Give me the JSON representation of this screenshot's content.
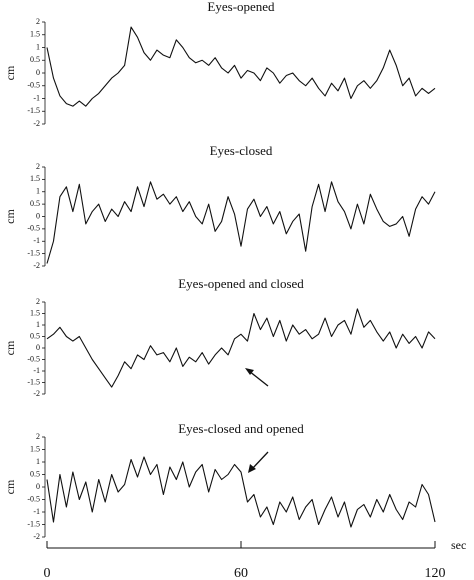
{
  "chart_data": [
    {
      "type": "line",
      "title": "Eyes-opened",
      "ylabel": "cm",
      "xlim": [
        0,
        120
      ],
      "ylim": [
        -2,
        2
      ],
      "yticks": [
        2,
        1.5,
        1,
        0.5,
        0,
        -0.5,
        -1,
        -1.5,
        -2
      ],
      "x": [
        0,
        2,
        4,
        6,
        8,
        10,
        12,
        14,
        16,
        18,
        20,
        22,
        24,
        26,
        28,
        30,
        32,
        34,
        36,
        38,
        40,
        42,
        44,
        46,
        48,
        50,
        52,
        54,
        56,
        58,
        60,
        62,
        64,
        66,
        68,
        70,
        72,
        74,
        76,
        78,
        80,
        82,
        84,
        86,
        88,
        90,
        92,
        94,
        96,
        98,
        100,
        102,
        104,
        106,
        108,
        110,
        112,
        114,
        116,
        118,
        120
      ],
      "series": [
        {
          "color": "#111111",
          "values": [
            1.0,
            -0.2,
            -0.9,
            -1.2,
            -1.3,
            -1.1,
            -1.3,
            -1.0,
            -0.8,
            -0.5,
            -0.2,
            0.0,
            0.3,
            1.8,
            1.4,
            0.8,
            0.5,
            0.9,
            0.7,
            0.6,
            1.3,
            1.0,
            0.6,
            0.4,
            0.5,
            0.3,
            0.6,
            0.2,
            0.0,
            0.3,
            -0.2,
            0.1,
            0.0,
            -0.3,
            0.2,
            0.0,
            -0.4,
            -0.1,
            0.0,
            -0.3,
            -0.5,
            -0.2,
            -0.6,
            -0.9,
            -0.4,
            -0.7,
            -0.2,
            -1.0,
            -0.5,
            -0.3,
            -0.6,
            -0.3,
            0.2,
            0.9,
            0.3,
            -0.5,
            -0.2,
            -0.9,
            -0.6,
            -0.8,
            -0.6
          ]
        }
      ]
    },
    {
      "type": "line",
      "title": "Eyes-closed",
      "ylabel": "cm",
      "xlim": [
        0,
        120
      ],
      "ylim": [
        -2,
        2
      ],
      "yticks": [
        2,
        1.5,
        1,
        0.5,
        0,
        -0.5,
        -1,
        -1.5,
        -2
      ],
      "x": [
        0,
        2,
        4,
        6,
        8,
        10,
        12,
        14,
        16,
        18,
        20,
        22,
        24,
        26,
        28,
        30,
        32,
        34,
        36,
        38,
        40,
        42,
        44,
        46,
        48,
        50,
        52,
        54,
        56,
        58,
        60,
        62,
        64,
        66,
        68,
        70,
        72,
        74,
        76,
        78,
        80,
        82,
        84,
        86,
        88,
        90,
        92,
        94,
        96,
        98,
        100,
        102,
        104,
        106,
        108,
        110,
        112,
        114,
        116,
        118,
        120
      ],
      "series": [
        {
          "color": "#111111",
          "values": [
            -1.9,
            -1.0,
            0.8,
            1.2,
            0.2,
            1.3,
            -0.3,
            0.2,
            0.5,
            -0.2,
            0.3,
            0.0,
            0.6,
            0.2,
            1.2,
            0.4,
            1.4,
            0.7,
            0.9,
            0.5,
            0.8,
            0.2,
            0.6,
            0.0,
            -0.3,
            0.5,
            -0.6,
            -0.2,
            0.8,
            0.1,
            -1.2,
            0.3,
            0.7,
            0.0,
            0.4,
            -0.3,
            0.2,
            -0.7,
            -0.2,
            0.1,
            -1.4,
            0.4,
            1.3,
            0.2,
            1.4,
            0.6,
            0.2,
            -0.5,
            0.5,
            -0.3,
            0.9,
            0.3,
            -0.2,
            -0.4,
            -0.3,
            0.0,
            -0.8,
            0.3,
            0.8,
            0.5,
            1.0
          ]
        }
      ]
    },
    {
      "type": "line",
      "title": "Eyes-opened and closed",
      "ylabel": "cm",
      "xlim": [
        0,
        120
      ],
      "ylim": [
        -2,
        2
      ],
      "yticks": [
        2,
        1.5,
        1,
        0.5,
        0,
        -0.5,
        -1,
        -1.5,
        -2
      ],
      "x": [
        0,
        2,
        4,
        6,
        8,
        10,
        12,
        14,
        16,
        18,
        20,
        22,
        24,
        26,
        28,
        30,
        32,
        34,
        36,
        38,
        40,
        42,
        44,
        46,
        48,
        50,
        52,
        54,
        56,
        58,
        60,
        62,
        64,
        66,
        68,
        70,
        72,
        74,
        76,
        78,
        80,
        82,
        84,
        86,
        88,
        90,
        92,
        94,
        96,
        98,
        100,
        102,
        104,
        106,
        108,
        110,
        112,
        114,
        116,
        118,
        120
      ],
      "series": [
        {
          "color": "#111111",
          "values": [
            0.4,
            0.6,
            0.9,
            0.5,
            0.3,
            0.5,
            0.0,
            -0.5,
            -0.9,
            -1.3,
            -1.7,
            -1.2,
            -0.6,
            -0.9,
            -0.3,
            -0.5,
            0.1,
            -0.3,
            -0.2,
            -0.6,
            0.0,
            -0.8,
            -0.4,
            -0.6,
            -0.2,
            -0.7,
            -0.3,
            0.0,
            -0.3,
            0.4,
            0.6,
            0.3,
            1.5,
            0.8,
            1.3,
            0.5,
            1.2,
            0.3,
            1.0,
            0.6,
            0.8,
            0.4,
            0.6,
            1.3,
            0.5,
            1.0,
            1.2,
            0.6,
            1.7,
            0.9,
            1.2,
            0.7,
            0.3,
            0.7,
            0.0,
            0.6,
            0.2,
            0.5,
            0.0,
            0.7,
            0.4
          ]
        }
      ]
    },
    {
      "type": "line",
      "title": "Eyes-closed and opened",
      "ylabel": "cm",
      "xlabel": "sec",
      "xlim": [
        0,
        120
      ],
      "xticks": [
        0,
        60,
        120
      ],
      "ylim": [
        -2,
        2
      ],
      "yticks": [
        2,
        1.5,
        1,
        0.5,
        0,
        -0.5,
        -1,
        -1.5,
        -2
      ],
      "x": [
        0,
        2,
        4,
        6,
        8,
        10,
        12,
        14,
        16,
        18,
        20,
        22,
        24,
        26,
        28,
        30,
        32,
        34,
        36,
        38,
        40,
        42,
        44,
        46,
        48,
        50,
        52,
        54,
        56,
        58,
        60,
        62,
        64,
        66,
        68,
        70,
        72,
        74,
        76,
        78,
        80,
        82,
        84,
        86,
        88,
        90,
        92,
        94,
        96,
        98,
        100,
        102,
        104,
        106,
        108,
        110,
        112,
        114,
        116,
        118,
        120
      ],
      "series": [
        {
          "color": "#111111",
          "values": [
            0.3,
            -1.4,
            0.5,
            -0.8,
            0.6,
            -0.5,
            0.2,
            -1.0,
            0.3,
            -0.6,
            0.5,
            -0.2,
            0.1,
            1.1,
            0.4,
            1.2,
            0.5,
            0.9,
            -0.3,
            0.8,
            0.3,
            1.0,
            0.0,
            0.6,
            0.9,
            -0.2,
            0.7,
            0.3,
            0.5,
            0.9,
            0.6,
            -0.6,
            -0.3,
            -1.2,
            -0.8,
            -1.5,
            -0.6,
            -1.0,
            -0.4,
            -1.3,
            -0.8,
            -0.5,
            -1.5,
            -0.9,
            -0.4,
            -1.2,
            -0.6,
            -1.6,
            -0.9,
            -0.7,
            -1.2,
            -0.5,
            -1.0,
            -0.3,
            -0.9,
            -1.3,
            -0.6,
            -0.8,
            0.1,
            -0.3,
            -1.4
          ]
        }
      ]
    }
  ]
}
